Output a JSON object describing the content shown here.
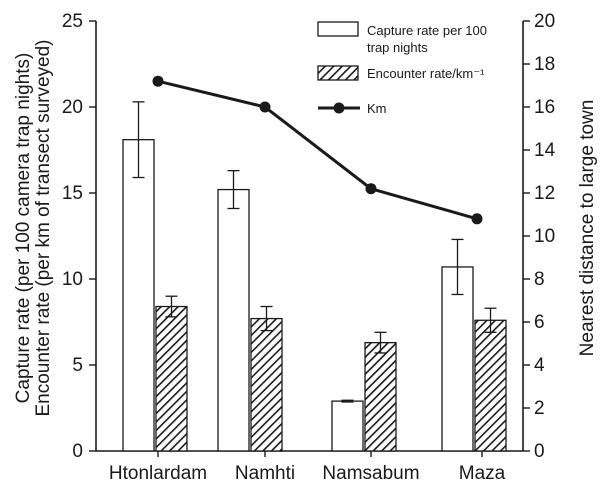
{
  "chart_data": {
    "type": "bar",
    "categories": [
      "Htonlardam",
      "Namhti",
      "Namsabum",
      "Maza"
    ],
    "y_left": {
      "label_line1": "Capture rate (per 100 camera trap nights)",
      "label_line2": "Encounter rate (per km of transect surveyed)",
      "ylim": [
        0,
        25
      ],
      "ticks": [
        "0",
        "5",
        "10",
        "15",
        "20",
        "25"
      ]
    },
    "y_right": {
      "label": "Nearest distance to large town",
      "ylim": [
        0,
        20
      ],
      "ticks": [
        "0",
        "2",
        "4",
        "6",
        "8",
        "10",
        "12",
        "14",
        "16",
        "18",
        "20"
      ]
    },
    "series": [
      {
        "name": "Capture rate per 100 trap nights",
        "legend_lines": [
          "Capture rate per 100",
          "trap nights"
        ],
        "style": "open",
        "axis": "left",
        "values": [
          18.1,
          15.2,
          2.9,
          10.7
        ],
        "errors": [
          2.2,
          1.1,
          0.05,
          1.6
        ]
      },
      {
        "name": "Encounter rate/km⁻¹",
        "legend_lines": [
          "Encounter rate/km⁻¹"
        ],
        "style": "hatched",
        "axis": "left",
        "values": [
          8.4,
          7.7,
          6.3,
          7.6
        ],
        "errors": [
          0.6,
          0.7,
          0.6,
          0.7
        ]
      },
      {
        "name": "Km",
        "legend_lines": [
          "Km"
        ],
        "style": "line",
        "axis": "right",
        "values": [
          17.2,
          16.0,
          12.2,
          10.8
        ]
      }
    ],
    "grid": false,
    "legend_position": "top-right"
  }
}
